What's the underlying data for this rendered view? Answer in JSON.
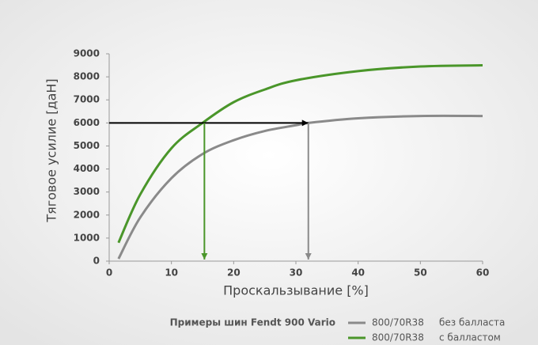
{
  "chart_data": {
    "type": "line",
    "y_label": "Тяговое усилие [даН]",
    "x_label": "Проскальзывание [%]",
    "legend_title": "Примеры шин Fendt 900 Vario",
    "xlim": [
      0,
      60
    ],
    "xticks": [
      0,
      10,
      20,
      30,
      40,
      50,
      60
    ],
    "ylim": [
      0,
      9000
    ],
    "yticks": [
      0,
      1000,
      2000,
      3000,
      4000,
      5000,
      6000,
      7000,
      8000,
      9000
    ],
    "grid": false,
    "series": [
      {
        "name": "800/70R38",
        "note": "без балласта",
        "color": "#8a8a8a",
        "x": [
          1.5,
          5,
          10,
          15,
          20,
          25,
          30,
          32,
          40,
          50,
          60
        ],
        "values": [
          100,
          1900,
          3600,
          4650,
          5250,
          5650,
          5900,
          6000,
          6200,
          6300,
          6300
        ]
      },
      {
        "name": "800/70R38",
        "note": "с балластом",
        "color": "#4a962a",
        "x": [
          1.5,
          5,
          10,
          15,
          20,
          25,
          30,
          40,
          50,
          60
        ],
        "values": [
          800,
          2900,
          4900,
          6000,
          6900,
          7450,
          7850,
          8250,
          8450,
          8500
        ]
      }
    ],
    "markers": [
      {
        "x": 15.3,
        "y": 6000,
        "color": "#4a962a"
      },
      {
        "x": 32,
        "y": 6000,
        "color": "#8a8a8a"
      }
    ],
    "guide_color": "#000000"
  }
}
